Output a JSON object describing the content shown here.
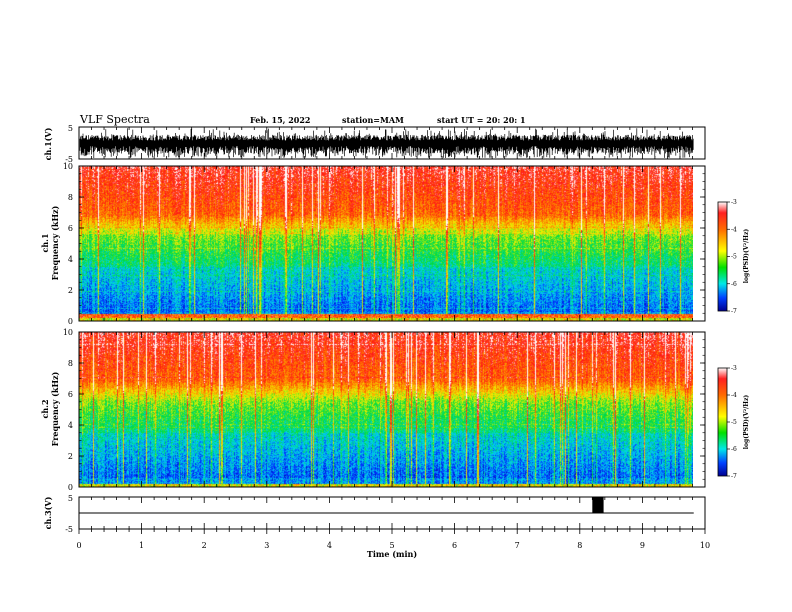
{
  "header": {
    "title": "VLF Spectra",
    "date": "Feb. 15, 2022",
    "station": "station=MAM",
    "start": "start  UT  =   20: 20: 1"
  },
  "chart_data": [
    {
      "type": "line",
      "name": "ch1-waveform",
      "ylabel": "ch.1(V)",
      "yticks": [
        "5",
        "-5"
      ],
      "ylim": [
        -5,
        5
      ],
      "xlim": [
        0,
        10
      ],
      "note_data_end_min": 9.82
    },
    {
      "type": "heatmap",
      "name": "ch1-spectrogram",
      "ylabel_line1": "ch.1",
      "ylabel_line2": "Frequency  (kHz)",
      "yticks": [
        "0",
        "2",
        "4",
        "6",
        "8",
        "10"
      ],
      "ylim": [
        0,
        10
      ],
      "xlim": [
        0,
        10
      ],
      "colorbar": {
        "ticks": [
          "-3",
          "-4",
          "-5",
          "-6",
          "-7"
        ],
        "range": [
          -7,
          -3
        ],
        "label": "log(PSD)(V²/Hz)"
      }
    },
    {
      "type": "heatmap",
      "name": "ch2-spectrogram",
      "ylabel_line1": "ch.2",
      "ylabel_line2": "Frequency  (kHz)",
      "yticks": [
        "0",
        "2",
        "4",
        "6",
        "8",
        "10"
      ],
      "ylim": [
        0,
        10
      ],
      "xlim": [
        0,
        10
      ],
      "colorbar": {
        "ticks": [
          "-3",
          "-4",
          "-5",
          "-6",
          "-7"
        ],
        "range": [
          -7,
          -3
        ],
        "label": "log(PSD)(V²/Hz)"
      }
    },
    {
      "type": "line",
      "name": "ch3-waveform",
      "ylabel": "ch.3(V)",
      "yticks": [
        "5",
        "-5"
      ],
      "ylim": [
        -5,
        5
      ],
      "xlim": [
        0,
        10
      ],
      "xlabel": "Time  (min)",
      "xticks": [
        "0",
        "1",
        "2",
        "3",
        "4",
        "5",
        "6",
        "7",
        "8",
        "9",
        "10"
      ],
      "baseline_value": 0,
      "pulse": {
        "x_start": 8.2,
        "x_end": 8.38,
        "y_low": 0,
        "y_high": 5
      }
    }
  ]
}
